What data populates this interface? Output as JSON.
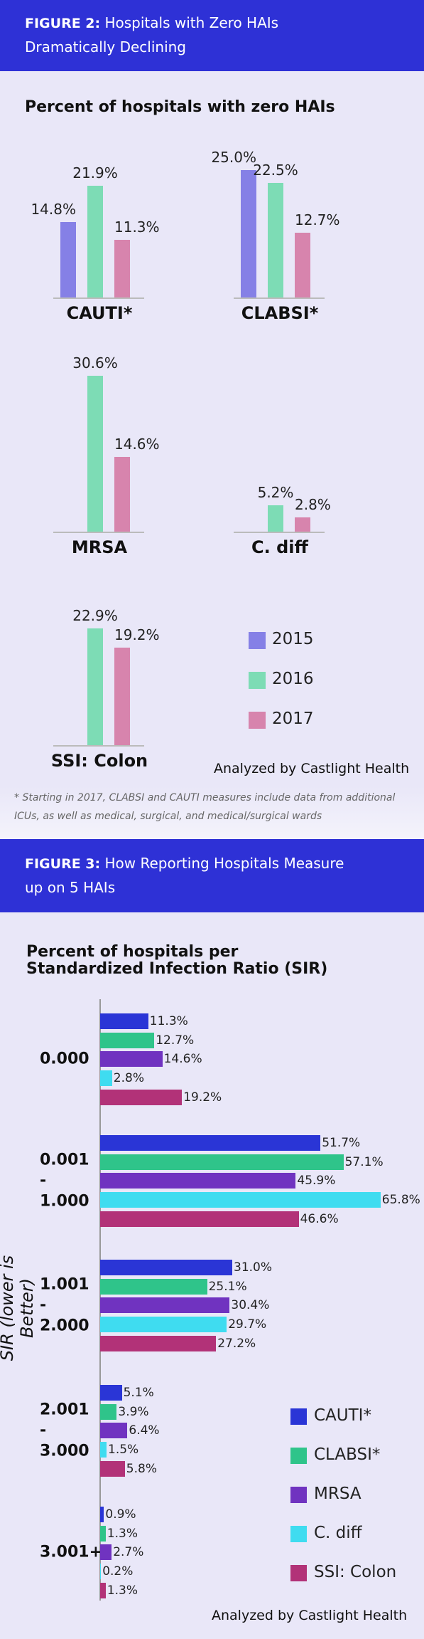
{
  "figure2": {
    "header_label": "FIGURE 2:",
    "header_title": "Hospitals with Zero HAIs Dramatically Declining",
    "footnote": "* Starting in 2017, CLABSI and CAUTI measures include data from additional ICUs, as well as medical, surgical, and medical/surgical wards",
    "credit": "Analyzed by Castlight Health"
  },
  "figure3": {
    "header_label": "FIGURE 3:",
    "header_title": "How Reporting Hospitals Measure up on 5 HAIs",
    "credit": "Analyzed by Castlight Health"
  },
  "chart_data": [
    {
      "type": "bar",
      "title": "Percent of hospitals with zero HAIs",
      "categories": [
        "CAUTI*",
        "CLABSI*",
        "MRSA",
        "C. diff",
        "SSI: Colon"
      ],
      "series": [
        {
          "name": "2015",
          "color": "#8580e6",
          "values": [
            14.8,
            25.0,
            null,
            null,
            null
          ],
          "value_labels": [
            "14.8%",
            "25.0%",
            null,
            null,
            null
          ]
        },
        {
          "name": "2016",
          "color": "#7ddcb5",
          "values": [
            21.9,
            22.5,
            30.6,
            5.2,
            22.9
          ],
          "value_labels": [
            "21.9%",
            "22.5%",
            "30.6%",
            "5.2%",
            "22.9%"
          ]
        },
        {
          "name": "2017",
          "color": "#d784ad",
          "values": [
            11.3,
            12.7,
            14.6,
            2.8,
            19.2
          ],
          "value_labels": [
            "11.3%",
            "12.7%",
            "14.6%",
            "2.8%",
            "19.2%"
          ]
        }
      ]
    },
    {
      "type": "hbar",
      "title": "Percent of hospitals per Standardized Infection Ratio (SIR)",
      "y_label": "SIR (lower is Better)",
      "categories": [
        "0.000",
        "0.001 - 1.000",
        "1.001 - 2.000",
        "2.001 - 3.000",
        "3.001+"
      ],
      "series": [
        {
          "name": "CAUTI*",
          "color": "#2a35d6",
          "values": [
            11.3,
            51.7,
            31.0,
            5.1,
            0.9
          ],
          "value_labels": [
            "11.3%",
            "51.7%",
            "31.0%",
            "5.1%",
            "0.9%"
          ]
        },
        {
          "name": "CLABSI*",
          "color": "#2fc48a",
          "values": [
            12.7,
            57.1,
            25.1,
            3.9,
            1.3
          ],
          "value_labels": [
            "12.7%",
            "57.1%",
            "25.1%",
            "3.9%",
            "1.3%"
          ]
        },
        {
          "name": "MRSA",
          "color": "#7033c0",
          "values": [
            14.6,
            45.9,
            30.4,
            6.4,
            2.7
          ],
          "value_labels": [
            "14.6%",
            "45.9%",
            "30.4%",
            "6.4%",
            "2.7%"
          ]
        },
        {
          "name": "C. diff",
          "color": "#3fdcf0",
          "values": [
            2.8,
            65.8,
            29.7,
            1.5,
            0.2
          ],
          "value_labels": [
            "2.8%",
            "65.8%",
            "29.7%",
            "1.5%",
            "0.2%"
          ]
        },
        {
          "name": "SSI: Colon",
          "color": "#b23278",
          "values": [
            19.2,
            46.6,
            27.2,
            5.8,
            1.3
          ],
          "value_labels": [
            "19.2%",
            "46.6%",
            "27.2%",
            "5.8%",
            "1.3%"
          ]
        }
      ]
    }
  ]
}
